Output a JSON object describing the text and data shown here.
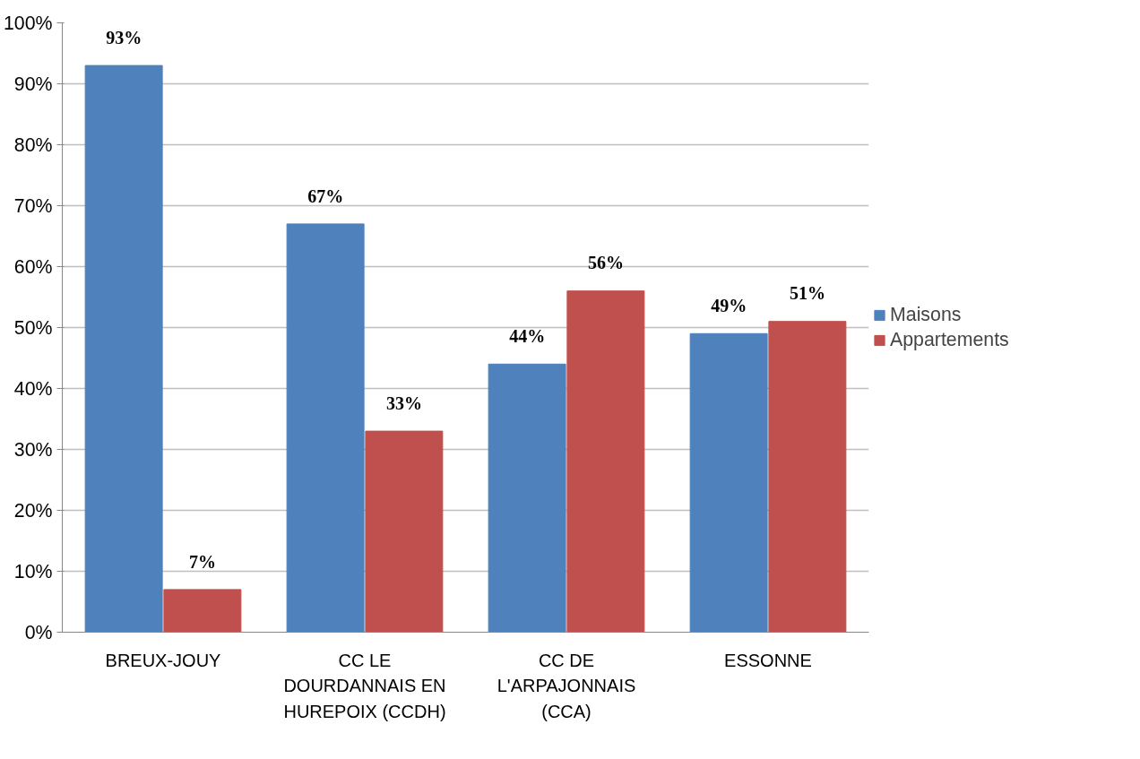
{
  "chart_data": {
    "type": "bar",
    "categories": [
      "BREUX-JOUY",
      "CC LE\nDOURDANNAIS EN\nHUREPOIX (CCDH)",
      "CC DE\nL'ARPAJONNAIS\n(CCA)",
      "ESSONNE"
    ],
    "series": [
      {
        "name": "Maisons",
        "color": "#4f81bd",
        "values": [
          93,
          67,
          44,
          49
        ],
        "value_labels": [
          "93%",
          "67%",
          "44%",
          "49%"
        ]
      },
      {
        "name": "Appartements",
        "color": "#c0504d",
        "values": [
          7,
          33,
          56,
          51
        ],
        "value_labels": [
          "7%",
          "33%",
          "56%",
          "51%"
        ]
      }
    ],
    "ylim": [
      0,
      100
    ],
    "yticks": [
      {
        "value": 0,
        "label": "0%"
      },
      {
        "value": 10,
        "label": "10%"
      },
      {
        "value": 20,
        "label": "20%"
      },
      {
        "value": 30,
        "label": "30%"
      },
      {
        "value": 40,
        "label": "40%"
      },
      {
        "value": 50,
        "label": "50%"
      },
      {
        "value": 60,
        "label": "60%"
      },
      {
        "value": 70,
        "label": "70%"
      },
      {
        "value": 80,
        "label": "80%"
      },
      {
        "value": 90,
        "label": "90%"
      },
      {
        "value": 100,
        "label": "100%"
      }
    ],
    "grid": "y",
    "legend": "right"
  }
}
